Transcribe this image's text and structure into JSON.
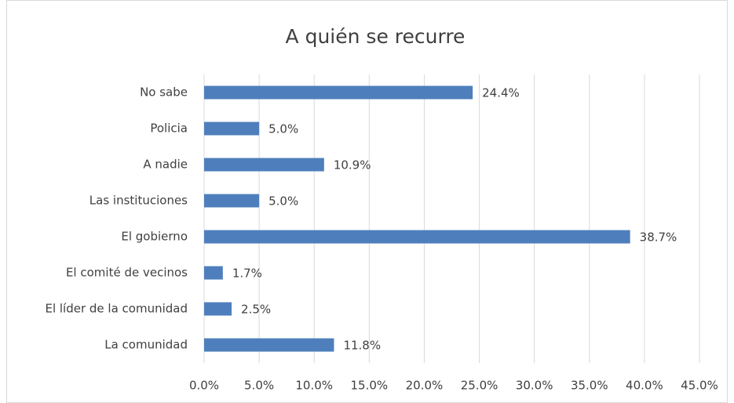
{
  "chart_data": {
    "type": "hbar",
    "title": "A quién se recurre",
    "categories": [
      "No sabe",
      "Policia",
      "A nadie",
      "Las instituciones",
      "El gobierno",
      "El comité de vecinos",
      "El líder de la comunidad",
      "La comunidad"
    ],
    "values": [
      24.4,
      5.0,
      10.9,
      5.0,
      38.7,
      1.7,
      2.5,
      11.8
    ],
    "value_labels": [
      "24.4%",
      "5.0%",
      "10.9%",
      "5.0%",
      "38.7%",
      "1.7%",
      "2.5%",
      "11.8%"
    ],
    "color": "#4e7fbc",
    "xlim": [
      0,
      45
    ],
    "xticks": [
      {
        "value": 0,
        "label": "0.0%"
      },
      {
        "value": 5,
        "label": "5.0%"
      },
      {
        "value": 10,
        "label": "10.0%"
      },
      {
        "value": 15,
        "label": "15.0%"
      },
      {
        "value": 20,
        "label": "20.0%"
      },
      {
        "value": 25,
        "label": "25.0%"
      },
      {
        "value": 30,
        "label": "30.0%"
      },
      {
        "value": 35,
        "label": "35.0%"
      },
      {
        "value": 40,
        "label": "40.0%"
      },
      {
        "value": 45,
        "label": "45.0%"
      }
    ],
    "grid": true
  }
}
